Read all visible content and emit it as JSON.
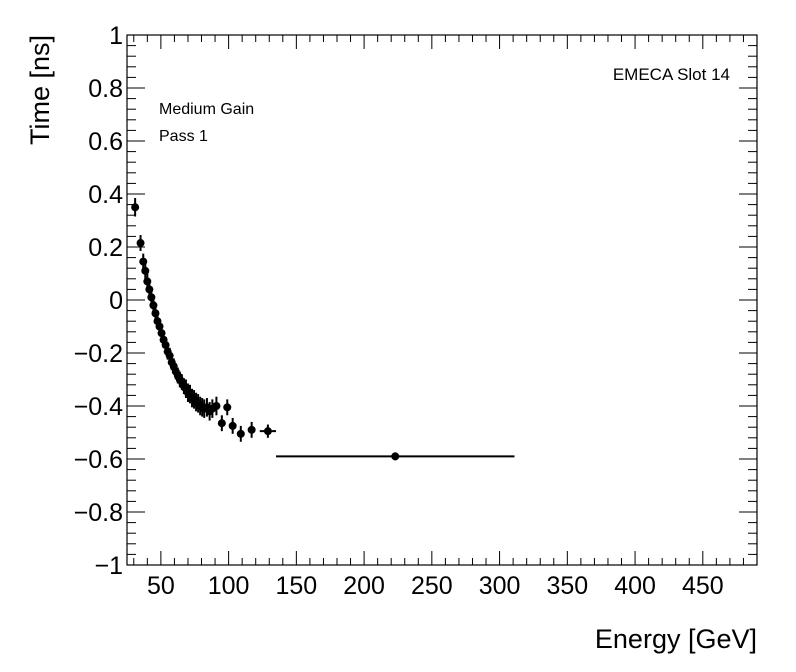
{
  "chart_data": {
    "type": "scatter",
    "title": "",
    "xlabel": "Energy [GeV]",
    "ylabel": "Time [ns]",
    "xlim": [
      25,
      490
    ],
    "ylim": [
      -1,
      1
    ],
    "x_ticks": [
      50,
      100,
      150,
      200,
      250,
      300,
      350,
      400,
      450
    ],
    "x_tick_labels": [
      "50",
      "100",
      "150",
      "200",
      "250",
      "300",
      "350",
      "400",
      "450"
    ],
    "y_ticks": [
      -1,
      -0.8,
      -0.6,
      -0.4,
      -0.2,
      0,
      0.2,
      0.4,
      0.6,
      0.8,
      1
    ],
    "y_tick_labels": [
      "−1",
      "−0.8",
      "−0.6",
      "−0.4",
      "−0.2",
      "0",
      "0.2",
      "0.4",
      "0.6",
      "0.8",
      "1"
    ],
    "annotations": {
      "gain": "Medium Gain",
      "pass": "Pass 1",
      "slot": "EMECA Slot 14"
    },
    "grid": false,
    "series": [
      {
        "name": "timing",
        "points": [
          {
            "x": 31.0,
            "y": 0.35,
            "yerr": 0.035,
            "xerr": 0
          },
          {
            "x": 35.0,
            "y": 0.215,
            "yerr": 0.03,
            "xerr": 0
          },
          {
            "x": 37.0,
            "y": 0.145,
            "yerr": 0.03,
            "xerr": 0
          },
          {
            "x": 38.5,
            "y": 0.11,
            "yerr": 0.03,
            "xerr": 0
          },
          {
            "x": 40.0,
            "y": 0.07,
            "yerr": 0.03,
            "xerr": 0
          },
          {
            "x": 41.5,
            "y": 0.04,
            "yerr": 0.03,
            "xerr": 0
          },
          {
            "x": 43.0,
            "y": 0.01,
            "yerr": 0.03,
            "xerr": 0
          },
          {
            "x": 44.5,
            "y": -0.02,
            "yerr": 0.03,
            "xerr": 0
          },
          {
            "x": 46.0,
            "y": -0.05,
            "yerr": 0.03,
            "xerr": 0
          },
          {
            "x": 47.5,
            "y": -0.08,
            "yerr": 0.03,
            "xerr": 0
          },
          {
            "x": 49.0,
            "y": -0.1,
            "yerr": 0.03,
            "xerr": 0
          },
          {
            "x": 50.5,
            "y": -0.125,
            "yerr": 0.03,
            "xerr": 0
          },
          {
            "x": 52.0,
            "y": -0.15,
            "yerr": 0.03,
            "xerr": 0
          },
          {
            "x": 53.5,
            "y": -0.17,
            "yerr": 0.03,
            "xerr": 0
          },
          {
            "x": 55.0,
            "y": -0.195,
            "yerr": 0.03,
            "xerr": 0
          },
          {
            "x": 56.5,
            "y": -0.21,
            "yerr": 0.03,
            "xerr": 0
          },
          {
            "x": 58.0,
            "y": -0.235,
            "yerr": 0.03,
            "xerr": 0
          },
          {
            "x": 59.5,
            "y": -0.25,
            "yerr": 0.03,
            "xerr": 0
          },
          {
            "x": 61.0,
            "y": -0.27,
            "yerr": 0.03,
            "xerr": 0
          },
          {
            "x": 62.5,
            "y": -0.285,
            "yerr": 0.03,
            "xerr": 0
          },
          {
            "x": 64.0,
            "y": -0.3,
            "yerr": 0.03,
            "xerr": 0
          },
          {
            "x": 65.5,
            "y": -0.31,
            "yerr": 0.03,
            "xerr": 0
          },
          {
            "x": 67.0,
            "y": -0.325,
            "yerr": 0.03,
            "xerr": 0
          },
          {
            "x": 68.5,
            "y": -0.335,
            "yerr": 0.035,
            "xerr": 0
          },
          {
            "x": 70.0,
            "y": -0.35,
            "yerr": 0.035,
            "xerr": 0
          },
          {
            "x": 71.5,
            "y": -0.355,
            "yerr": 0.035,
            "xerr": 0
          },
          {
            "x": 73.0,
            "y": -0.37,
            "yerr": 0.035,
            "xerr": 0
          },
          {
            "x": 74.5,
            "y": -0.375,
            "yerr": 0.035,
            "xerr": 0
          },
          {
            "x": 76.0,
            "y": -0.385,
            "yerr": 0.035,
            "xerr": 0
          },
          {
            "x": 77.5,
            "y": -0.39,
            "yerr": 0.035,
            "xerr": 0
          },
          {
            "x": 79.0,
            "y": -0.4,
            "yerr": 0.035,
            "xerr": 0
          },
          {
            "x": 80.5,
            "y": -0.405,
            "yerr": 0.035,
            "xerr": 0
          },
          {
            "x": 82.0,
            "y": -0.41,
            "yerr": 0.035,
            "xerr": 0
          },
          {
            "x": 84.0,
            "y": -0.405,
            "yerr": 0.035,
            "xerr": 0
          },
          {
            "x": 86.0,
            "y": -0.42,
            "yerr": 0.035,
            "xerr": 0
          },
          {
            "x": 88.0,
            "y": -0.41,
            "yerr": 0.035,
            "xerr": 0
          },
          {
            "x": 91.0,
            "y": -0.4,
            "yerr": 0.035,
            "xerr": 0
          },
          {
            "x": 95.0,
            "y": -0.465,
            "yerr": 0.03,
            "xerr": 0
          },
          {
            "x": 99.0,
            "y": -0.405,
            "yerr": 0.03,
            "xerr": 0
          },
          {
            "x": 103.0,
            "y": -0.475,
            "yerr": 0.03,
            "xerr": 0
          },
          {
            "x": 109.0,
            "y": -0.505,
            "yerr": 0.03,
            "xerr": 0
          },
          {
            "x": 117.0,
            "y": -0.49,
            "yerr": 0.03,
            "xerr": 0
          },
          {
            "x": 129.0,
            "y": -0.495,
            "yerr": 0.025,
            "xerr": 6
          },
          {
            "x": 223.0,
            "y": -0.59,
            "yerr": 0.015,
            "xerr": 88
          }
        ]
      }
    ]
  }
}
